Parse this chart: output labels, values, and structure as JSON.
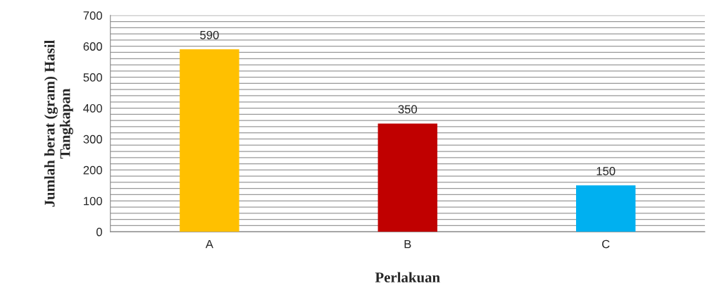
{
  "chart_data": {
    "type": "bar",
    "xlabel": "Perlakuan",
    "ylabel": "Jumlah berat (gram) Hasil\nTangkapan",
    "categories": [
      "A",
      "B",
      "C"
    ],
    "values": [
      590,
      350,
      150
    ],
    "colors": [
      "#ffc000",
      "#c00000",
      "#00b0f0"
    ],
    "data_labels": true,
    "ylim": [
      0,
      700
    ],
    "yticks": [
      0,
      {
        "value": 20,
        "label": null
      },
      {
        "value": 40,
        "label": null
      },
      {
        "value": 60,
        "label": null
      },
      {
        "value": 80,
        "label": null
      },
      100,
      {
        "value": 120,
        "label": null
      },
      {
        "value": 140,
        "label": null
      },
      {
        "value": 160,
        "label": null
      },
      {
        "value": 180,
        "label": null
      },
      200,
      {
        "value": 220,
        "label": null
      },
      {
        "value": 240,
        "label": null
      },
      {
        "value": 260,
        "label": null
      },
      {
        "value": 280,
        "label": null
      },
      300,
      {
        "value": 320,
        "label": null
      },
      {
        "value": 340,
        "label": null
      },
      {
        "value": 360,
        "label": null
      },
      {
        "value": 380,
        "label": null
      },
      400,
      {
        "value": 420,
        "label": null
      },
      {
        "value": 440,
        "label": null
      },
      {
        "value": 460,
        "label": null
      },
      {
        "value": 480,
        "label": null
      },
      500,
      {
        "value": 520,
        "label": null
      },
      {
        "value": 540,
        "label": null
      },
      {
        "value": 560,
        "label": null
      },
      {
        "value": 580,
        "label": null
      },
      600,
      {
        "value": 620,
        "label": null
      },
      {
        "value": 640,
        "label": null
      },
      {
        "value": 660,
        "label": null
      },
      {
        "value": 680,
        "label": null
      },
      700
    ],
    "grid": "y",
    "legend": false
  }
}
